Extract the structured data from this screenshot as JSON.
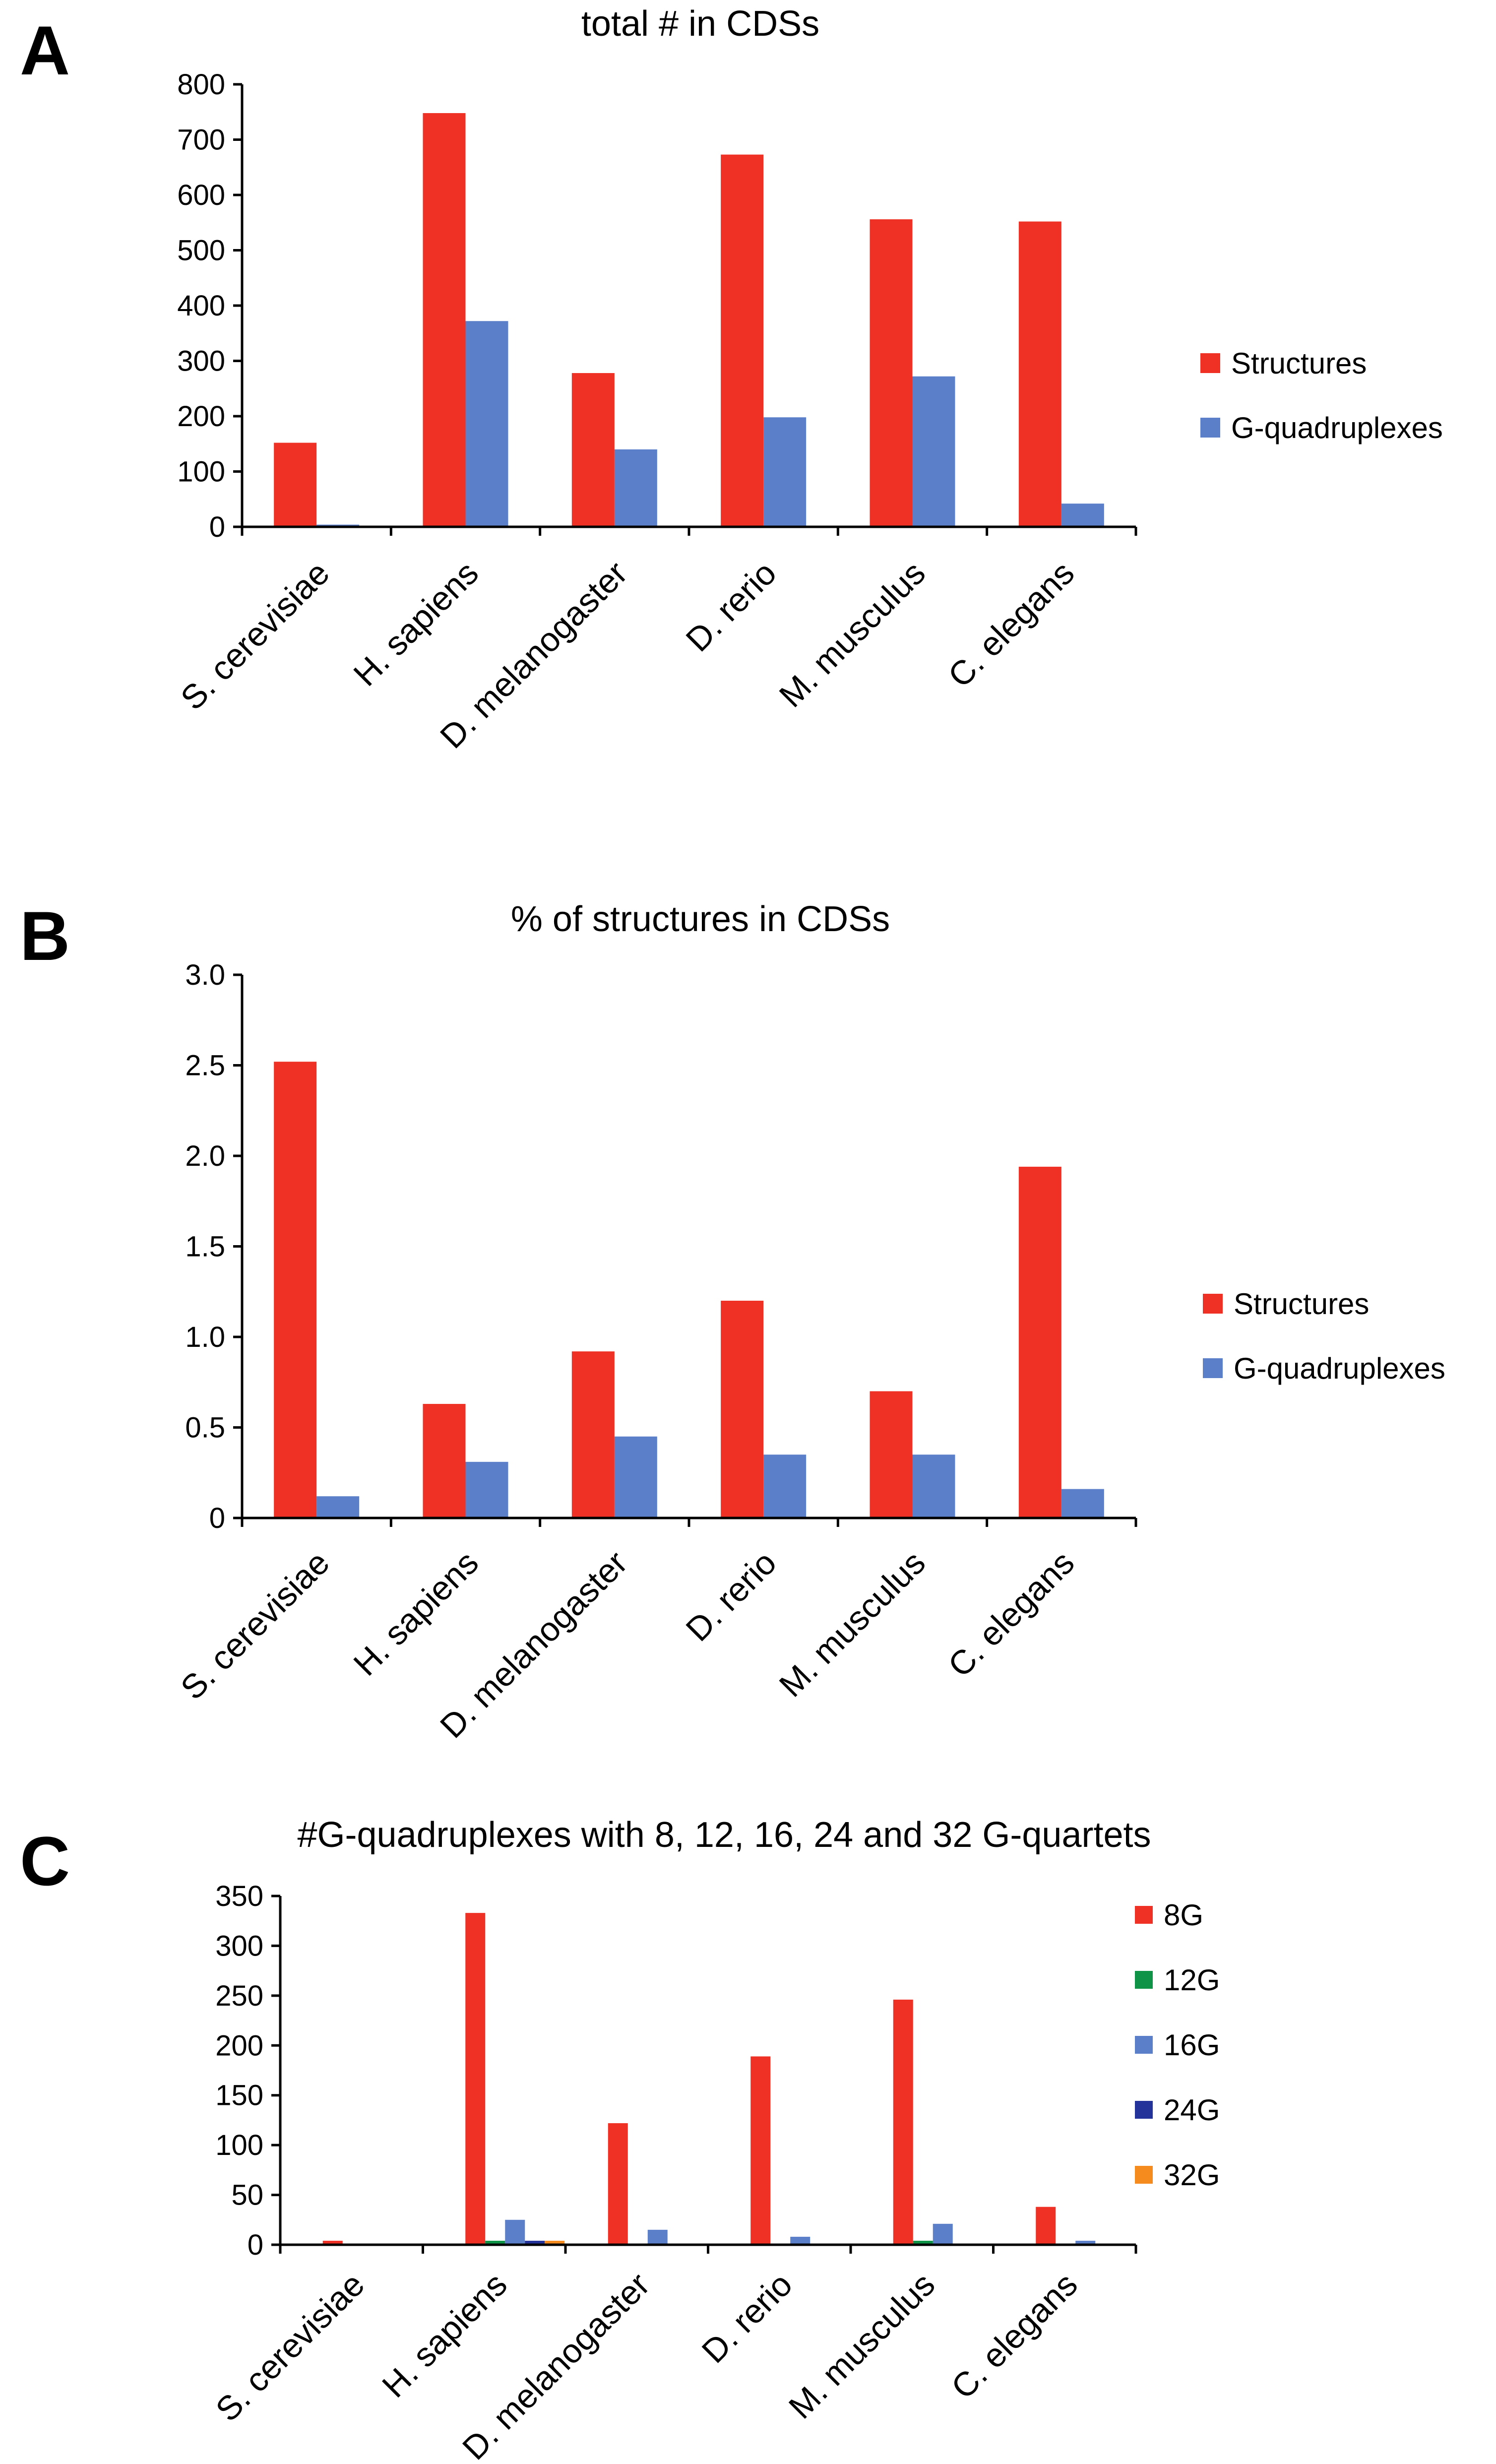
{
  "panels": [
    {
      "letter": "A"
    },
    {
      "letter": "B"
    },
    {
      "letter": "C"
    }
  ],
  "colors": {
    "structures": "#ee3124",
    "gquad": "#5b7fc8",
    "g8": "#ee3124",
    "g12": "#0f9447",
    "g16": "#5b7fc8",
    "g24": "#23339a",
    "g32": "#f58a1f"
  },
  "chart_data": [
    {
      "type": "bar",
      "title": "total # in CDSs",
      "categories": [
        "S. cerevisiae",
        "H. sapiens",
        "D. melanogaster",
        "D. rerio",
        "M. musculus",
        "C. elegans"
      ],
      "series": [
        {
          "name": "Structures",
          "values": [
            152,
            748,
            278,
            673,
            556,
            552
          ]
        },
        {
          "name": "G-quadruplexes",
          "values": [
            4,
            372,
            140,
            198,
            272,
            42
          ]
        }
      ],
      "yticks": [
        "0",
        "100",
        "200",
        "300",
        "400",
        "500",
        "600",
        "700",
        "800"
      ],
      "ylim": [
        0,
        800
      ],
      "grid": false,
      "legend_position": "right"
    },
    {
      "type": "bar",
      "title": "% of structures in CDSs",
      "categories": [
        "S. cerevisiae",
        "H. sapiens",
        "D. melanogaster",
        "D. rerio",
        "M. musculus",
        "C. elegans"
      ],
      "series": [
        {
          "name": "Structures",
          "values": [
            2.52,
            0.63,
            0.92,
            1.2,
            0.7,
            1.94
          ]
        },
        {
          "name": "G-quadruplexes",
          "values": [
            0.12,
            0.31,
            0.45,
            0.35,
            0.35,
            0.16
          ]
        }
      ],
      "yticks": [
        "0",
        "0.5",
        "1.0",
        "1.5",
        "2.0",
        "2.5",
        "3.0"
      ],
      "ylim": [
        0,
        3.0
      ],
      "grid": false,
      "legend_position": "right"
    },
    {
      "type": "bar",
      "title": "#G-quadruplexes with 8, 12, 16, 24 and 32 G-quartets",
      "categories": [
        "S. cerevisiae",
        "H. sapiens",
        "D. melanogaster",
        "D. rerio",
        "M. musculus",
        "C. elegans"
      ],
      "series": [
        {
          "name": "8G",
          "values": [
            4,
            333,
            122,
            189,
            246,
            38
          ]
        },
        {
          "name": "12G",
          "values": [
            0,
            4,
            1,
            1,
            4,
            1
          ]
        },
        {
          "name": "16G",
          "values": [
            0,
            25,
            15,
            8,
            21,
            4
          ]
        },
        {
          "name": "24G",
          "values": [
            0,
            4,
            1,
            1,
            1,
            1
          ]
        },
        {
          "name": "32G",
          "values": [
            0,
            4,
            1,
            0,
            0,
            0
          ]
        }
      ],
      "yticks": [
        "0",
        "50",
        "100",
        "150",
        "200",
        "250",
        "300",
        "350"
      ],
      "ylim": [
        0,
        350
      ],
      "grid": false,
      "legend_position": "top-right"
    }
  ]
}
